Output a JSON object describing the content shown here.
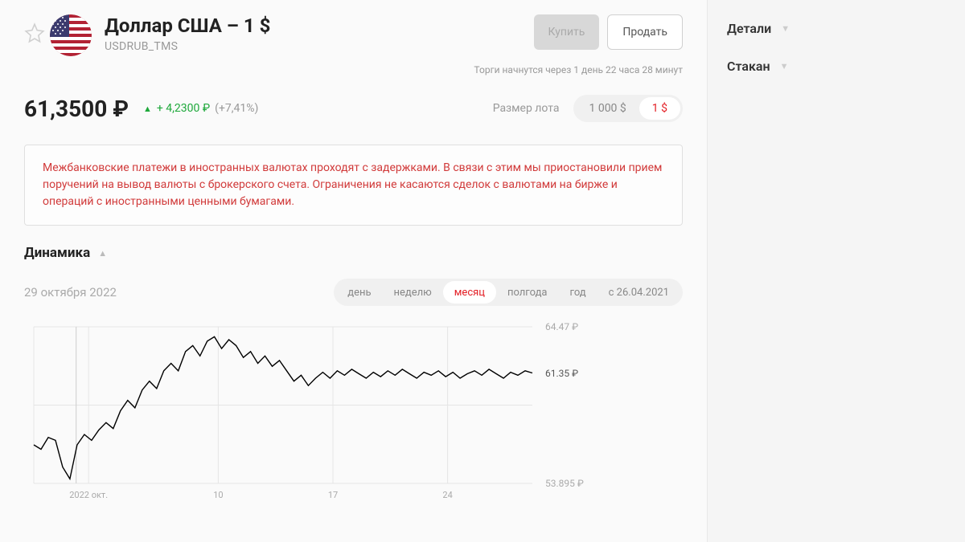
{
  "header": {
    "title": "Доллар США – 1 $",
    "ticker": "USDRUB_TMS",
    "buy_label": "Купить",
    "sell_label": "Продать",
    "trading_note": "Торги начнутся через 1 день 22 часа 28 минут"
  },
  "flag": {
    "stripe_red": "#b22234",
    "stripe_white": "#ffffff",
    "canton": "#3c3b6e"
  },
  "price": {
    "value": "61,3500 ₽",
    "change_abs": "+ 4,2300 ₽",
    "change_pct": "(+7,41%)",
    "change_color": "#1da83a"
  },
  "lot": {
    "label": "Размер лота",
    "options": [
      "1 000 $",
      "1 $"
    ],
    "active_index": 1
  },
  "warning": {
    "text": "Межбанковские платежи в иностранных валютах проходят с задержками. В связи с этим мы приостановили прием поручений на вывод валюты с брокерского счета. Ограничения не касаются сделок с валютами на бирже и операций с иностранными ценными бумагами."
  },
  "dynamics": {
    "title": "Динамика",
    "date": "29 октября 2022",
    "periods": [
      "день",
      "неделю",
      "месяц",
      "полгода",
      "год",
      "с 26.04.2021"
    ],
    "active_period_index": 2
  },
  "chart": {
    "type": "line",
    "ylim": [
      53.895,
      64.47
    ],
    "ylabels": [
      {
        "value": "64.47 ₽",
        "y": 0
      },
      {
        "value": "61.35 ₽",
        "y": 0.295
      },
      {
        "value": "53.895 ₽",
        "y": 1.0
      }
    ],
    "xticks": [
      {
        "label": "2022 окт.",
        "x": 0.11
      },
      {
        "label": "10",
        "x": 0.37
      },
      {
        "label": "17",
        "x": 0.6
      },
      {
        "label": "24",
        "x": 0.83
      }
    ],
    "line_color": "#000000",
    "grid_color": "#e5e5e5",
    "background": "#fafafa",
    "vertical_marker_x": 0.085,
    "data": [
      56.5,
      56.2,
      57.0,
      56.8,
      55.0,
      54.2,
      56.5,
      57.2,
      56.8,
      57.5,
      58.0,
      57.6,
      58.8,
      59.5,
      59.0,
      60.2,
      60.8,
      60.3,
      61.5,
      62.0,
      61.5,
      62.8,
      63.2,
      62.5,
      63.5,
      63.8,
      63.0,
      63.6,
      63.2,
      62.4,
      62.8,
      62.0,
      62.5,
      61.8,
      62.2,
      61.5,
      60.8,
      61.2,
      60.5,
      61.0,
      61.4,
      61.0,
      61.5,
      61.2,
      61.6,
      61.3,
      61.0,
      61.4,
      61.1,
      61.5,
      61.2,
      61.6,
      61.3,
      61.0,
      61.4,
      61.2,
      61.5,
      61.1,
      61.4,
      61.0,
      61.3,
      61.5,
      61.2,
      61.6,
      61.3,
      61.0,
      61.4,
      61.2,
      61.5,
      61.35
    ]
  },
  "sidebar": {
    "details_label": "Детали",
    "orderbook_label": "Стакан"
  },
  "colors": {
    "accent_red": "#e31e24",
    "text_primary": "#222222",
    "text_muted": "#999999",
    "bg": "#fafafa"
  }
}
